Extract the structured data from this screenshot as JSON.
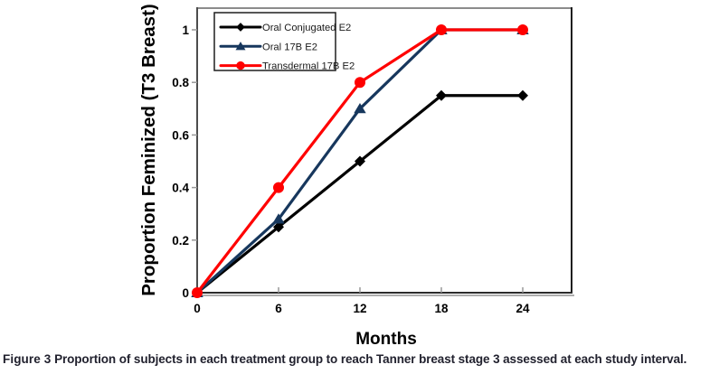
{
  "chart_data": {
    "type": "line",
    "x": [
      0,
      6,
      12,
      18,
      24
    ],
    "x_tick_labels": [
      "0",
      "6",
      "12",
      "18",
      "24"
    ],
    "series": [
      {
        "name": "Oral Conjugated E2",
        "color": "#000000",
        "marker": "diamond",
        "values": [
          0,
          0.25,
          0.5,
          0.75,
          0.75
        ]
      },
      {
        "name": "Oral 17B E2",
        "color": "#17375D",
        "marker": "triangle",
        "values": [
          0,
          0.28,
          0.7,
          1,
          1
        ]
      },
      {
        "name": "Transdermal 17B E2",
        "color": "#FF0000",
        "marker": "circle",
        "values": [
          0,
          0.4,
          0.8,
          1,
          1
        ]
      }
    ],
    "title": "",
    "xlabel": "Months",
    "ylabel": "Proportion Feminized (T3 Breast)",
    "yticks": [
      0,
      0.2,
      0.4,
      0.6,
      0.8,
      1
    ],
    "ytick_labels": [
      "0",
      "0.2",
      "0.4",
      "0.6",
      "0.8",
      "1"
    ],
    "xlim": [
      0,
      27.6
    ],
    "ylim": [
      0,
      1.09
    ],
    "grid": false,
    "legend_position": "top-left-inside",
    "colors": {
      "plot_border_dark": "#2b2b2b",
      "plot_border_gray": "#8c8c8c",
      "plot_shadow": "#adadad",
      "tick": "#999999",
      "text": "#000000",
      "legend_border": "#1f1f1f",
      "legend_text": "#1a1a1a"
    }
  },
  "caption": {
    "label": "Figure 3",
    "text": "Proportion of subjects in each treatment group to reach Tanner breast stage 3 assessed at each study interval."
  }
}
